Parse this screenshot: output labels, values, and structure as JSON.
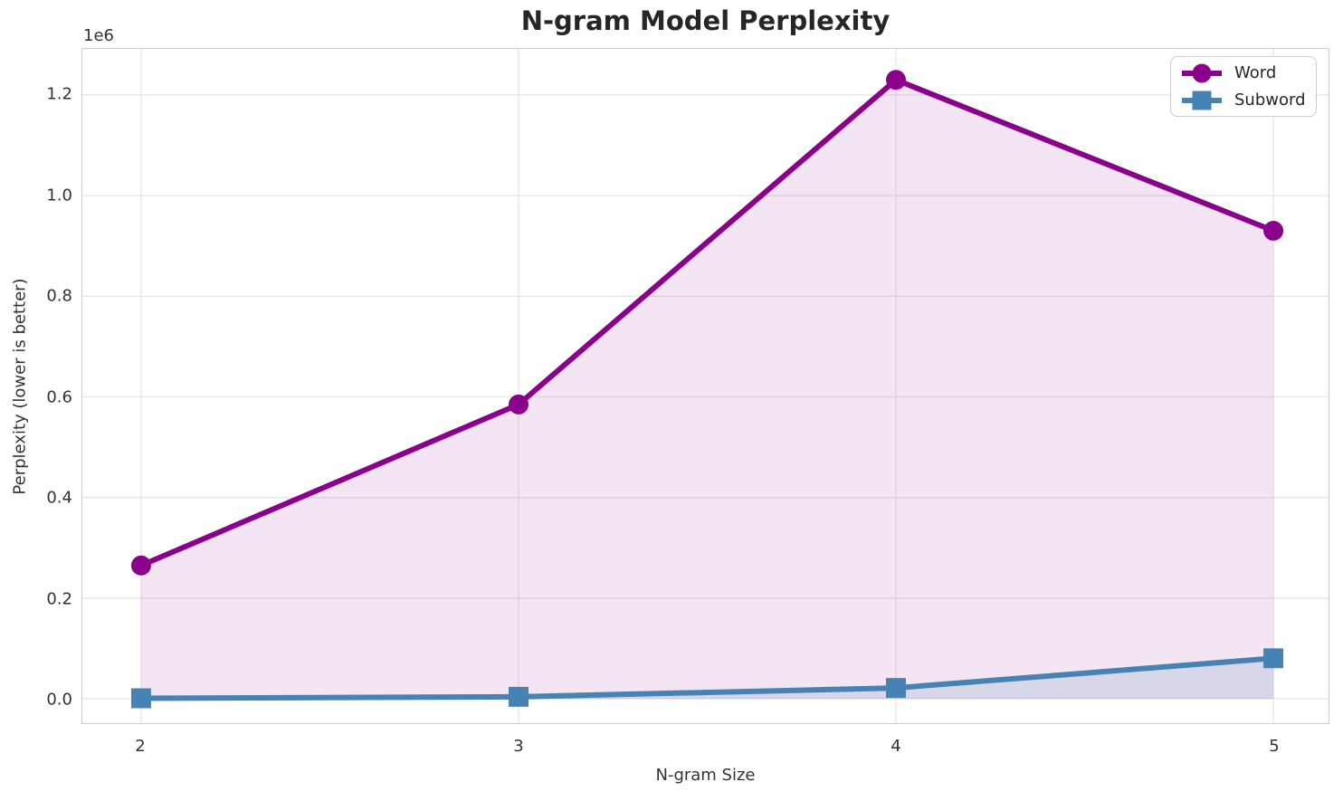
{
  "title": "N-gram Model Perplexity",
  "offset_label": "1e6",
  "xlabel": "N-gram Size",
  "ylabel": "Perplexity (lower is better)",
  "legend": {
    "position": "upper right",
    "items": [
      "Word",
      "Subword"
    ]
  },
  "style": {
    "word_color": "#8B008B",
    "subword_color": "#4682B4",
    "grid_color": "#e7e7e7",
    "spine_color": "#cccccc",
    "text_color": "#262626",
    "tick_color": "#333333",
    "background": "#ffffff"
  },
  "chart_data": {
    "type": "line",
    "title": "N-gram Model Perplexity",
    "xlabel": "N-gram Size",
    "ylabel": "Perplexity (lower is better)",
    "x": [
      2,
      3,
      4,
      5
    ],
    "series": [
      {
        "name": "Word",
        "marker": "circle",
        "color": "#8B008B",
        "fill_opacity": 0.1,
        "values": [
          265000,
          585000,
          1230000,
          930000
        ]
      },
      {
        "name": "Subword",
        "marker": "square",
        "color": "#4682B4",
        "fill_opacity": 0.15,
        "values": [
          1000,
          4000,
          21500,
          80500
        ]
      }
    ],
    "x_ticks": [
      2,
      3,
      4,
      5
    ],
    "y_ticks": [
      0.0,
      0.2,
      0.4,
      0.6,
      0.8,
      1.0,
      1.2
    ],
    "y_scale_offset_text": "1e6",
    "y_unit_multiplier": 1000000,
    "ylim": [
      -49000,
      1290000
    ],
    "grid": true,
    "area_fill_to_zero": true,
    "legend_position": "upper right"
  }
}
